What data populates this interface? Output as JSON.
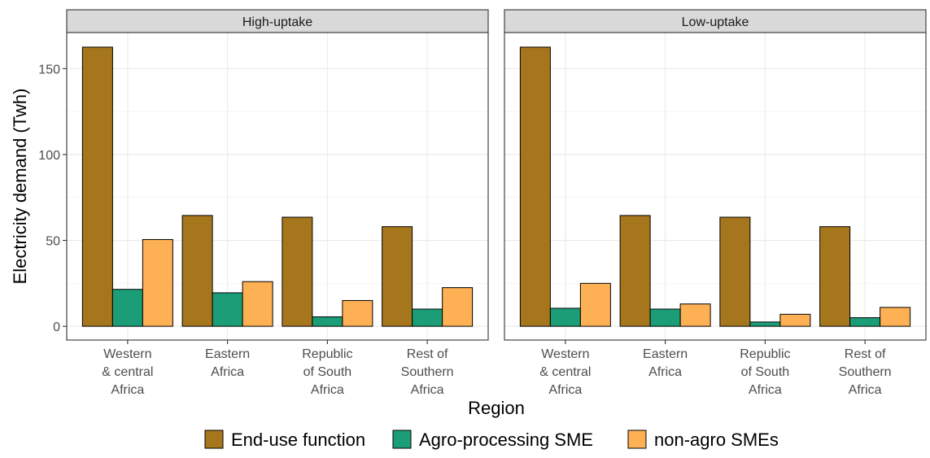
{
  "chart_data": {
    "type": "bar",
    "xlabel": "Region",
    "ylabel": "Electricity demand (Twh)",
    "ylim": [
      -8,
      171
    ],
    "yticks": [
      0,
      50,
      100,
      150
    ],
    "grid": true,
    "legend_position": "bottom",
    "categories": [
      [
        "Western",
        "& central",
        "Africa"
      ],
      [
        "Eastern",
        "Africa"
      ],
      [
        "Republic",
        "of South",
        "Africa"
      ],
      [
        "Rest of",
        "Southern",
        "Africa"
      ]
    ],
    "series_names": [
      "End-use function",
      "Agro-processing SME",
      "non-agro SMEs"
    ],
    "colors": [
      "#A6761D",
      "#1B9E77",
      "#FDB154"
    ],
    "panels": [
      {
        "title": "High-uptake",
        "series": [
          {
            "name": "End-use function",
            "values": [
              162.5,
              64.5,
              63.5,
              58
            ]
          },
          {
            "name": "Agro-processing SME",
            "values": [
              21.5,
              19.5,
              5.5,
              10
            ]
          },
          {
            "name": "non-agro SMEs",
            "values": [
              50.5,
              26,
              15,
              22.5
            ]
          }
        ]
      },
      {
        "title": "Low-uptake",
        "series": [
          {
            "name": "End-use function",
            "values": [
              162.5,
              64.5,
              63.5,
              58
            ]
          },
          {
            "name": "Agro-processing SME",
            "values": [
              10.5,
              10,
              2.5,
              5
            ]
          },
          {
            "name": "non-agro SMEs",
            "values": [
              25,
              13,
              7,
              11
            ]
          }
        ]
      }
    ]
  }
}
